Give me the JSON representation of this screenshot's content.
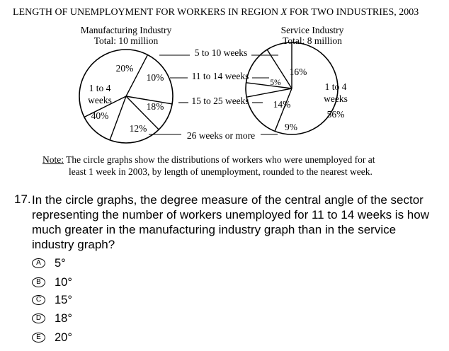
{
  "chart_data": {
    "type": "pie",
    "title": "LENGTH OF UNEMPLOYMENT FOR WORKERS IN REGION X FOR TWO INDUSTRIES, 2003",
    "categories": [
      "1 to 4 weeks",
      "5 to 10 weeks",
      "11 to 14 weeks",
      "15 to 25 weeks",
      "26 weeks or more"
    ],
    "series": [
      {
        "name": "Manufacturing Industry",
        "total": "Total: 10 million",
        "values": [
          40,
          20,
          10,
          18,
          12
        ],
        "labels": [
          "40%",
          "20%",
          "10%",
          "18%",
          "12%"
        ]
      },
      {
        "name": "Service Industry",
        "total": "Total: 8 million",
        "values": [
          56,
          16,
          5,
          14,
          9
        ],
        "labels": [
          "56%",
          "16%",
          "5%",
          "14%",
          "9%"
        ]
      }
    ],
    "slice_text": {
      "big_label_line1": "1 to 4",
      "big_label_line2": "weeks"
    }
  },
  "title_parts": {
    "pre": "LENGTH OF UNEMPLOYMENT FOR WORKERS IN REGION ",
    "var": "X",
    "post": " FOR TWO INDUSTRIES, 2003"
  },
  "note": {
    "label": "Note:",
    "line1": " The circle graphs show the distributions of workers who were unemployed for at",
    "line2": "least 1 week in 2003, by length of unemployment, rounded to the nearest week."
  },
  "question": {
    "number": "17.",
    "text": "In the circle graphs, the degree measure of the central angle of the sector representing the number of workers unemployed for 11 to 14 weeks is how much greater in the manufacturing industry graph than in the service industry graph?"
  },
  "choices": [
    {
      "letter": "A",
      "value": "5°"
    },
    {
      "letter": "B",
      "value": "10°"
    },
    {
      "letter": "C",
      "value": "15°"
    },
    {
      "letter": "D",
      "value": "18°"
    },
    {
      "letter": "E",
      "value": "20°"
    }
  ]
}
